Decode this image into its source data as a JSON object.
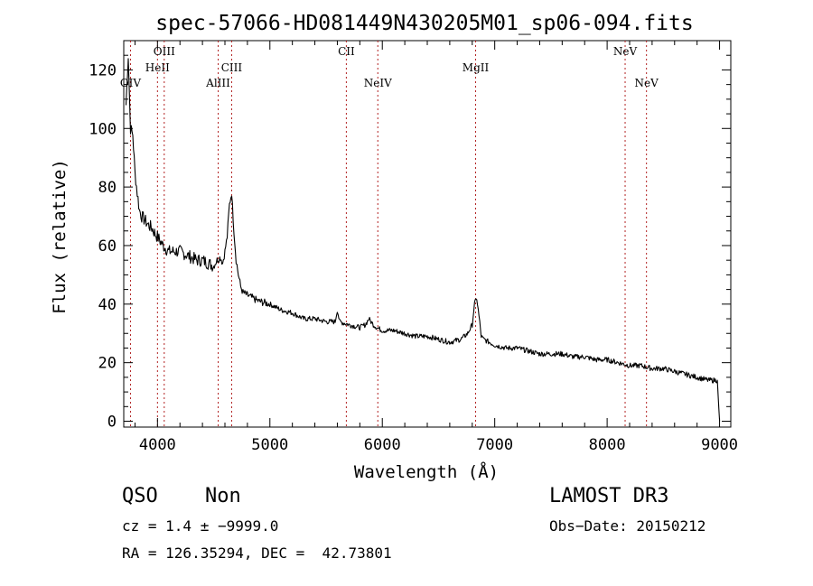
{
  "chart_data": {
    "type": "line",
    "title": "spec-57066-HD081449N430205M01_sp06-094.fits",
    "xlabel": "Wavelength (Å)",
    "ylabel": "Flux (relative)",
    "xlim": [
      3700,
      9100
    ],
    "ylim": [
      -2,
      130
    ],
    "xticks": [
      4000,
      5000,
      6000,
      7000,
      8000,
      9000
    ],
    "yticks": [
      0,
      20,
      40,
      60,
      80,
      100,
      120
    ],
    "grid": false,
    "series": [
      {
        "name": "spectrum",
        "x": [
          3720,
          3740,
          3760,
          3780,
          3800,
          3820,
          3840,
          3860,
          3880,
          3900,
          3920,
          3950,
          3980,
          4000,
          4050,
          4100,
          4150,
          4200,
          4250,
          4300,
          4350,
          4400,
          4450,
          4500,
          4530,
          4560,
          4580,
          4600,
          4620,
          4640,
          4660,
          4680,
          4700,
          4720,
          4740,
          4760,
          4800,
          4850,
          4900,
          5000,
          5100,
          5200,
          5300,
          5400,
          5500,
          5580,
          5600,
          5620,
          5700,
          5800,
          5850,
          5880,
          5900,
          5920,
          5950,
          6000,
          6100,
          6200,
          6300,
          6400,
          6500,
          6600,
          6700,
          6760,
          6800,
          6820,
          6840,
          6860,
          6880,
          6900,
          6950,
          7000,
          7100,
          7200,
          7300,
          7400,
          7500,
          7600,
          7700,
          7800,
          7900,
          8000,
          8100,
          8200,
          8300,
          8400,
          8500,
          8600,
          8700,
          8800,
          8900,
          8980,
          9000
        ],
        "y": [
          108,
          125,
          100,
          98,
          85,
          78,
          72,
          70,
          69,
          68,
          67,
          66,
          64,
          63,
          60,
          58,
          58,
          58,
          57,
          56,
          55,
          55,
          54,
          53,
          55,
          56,
          54,
          58,
          63,
          74,
          78,
          65,
          55,
          50,
          46,
          44,
          43,
          42,
          41,
          40,
          38,
          37,
          35,
          35,
          34,
          34,
          38,
          34,
          33,
          32,
          33,
          35,
          34,
          33,
          32,
          31,
          31,
          30,
          29,
          29,
          28,
          27,
          28,
          30,
          33,
          40,
          42,
          36,
          29,
          28,
          27,
          26,
          25,
          25,
          24,
          23,
          23,
          23,
          22,
          22,
          21,
          21,
          20,
          19,
          19,
          18,
          18,
          17,
          16,
          15,
          14,
          14,
          0
        ]
      }
    ],
    "lines": [
      {
        "label": "OIV",
        "x": 3760,
        "row": 2
      },
      {
        "label": "HeII",
        "x": 4000,
        "row": 1
      },
      {
        "label": "OIII",
        "x": 4060,
        "row": 0
      },
      {
        "label": "AlIII",
        "x": 4540,
        "row": 2
      },
      {
        "label": "CIII",
        "x": 4660,
        "row": 1
      },
      {
        "label": "CII",
        "x": 5680,
        "row": 0
      },
      {
        "label": "NeIV",
        "x": 5960,
        "row": 2
      },
      {
        "label": "MgII",
        "x": 6830,
        "row": 1
      },
      {
        "label": "NeV",
        "x": 8160,
        "row": 0
      },
      {
        "label": "NeV",
        "x": 8350,
        "row": 2
      }
    ]
  },
  "info": {
    "class": "QSO",
    "subclass": "Non",
    "survey": "LAMOST DR3",
    "cz": "cz = 1.4 ± −9999.0",
    "obs_date": "Obs−Date: 20150212",
    "radec": "RA = 126.35294, DEC =  42.73801"
  },
  "colors": {
    "line_marker": "#b22222",
    "spectrum": "#000000"
  }
}
